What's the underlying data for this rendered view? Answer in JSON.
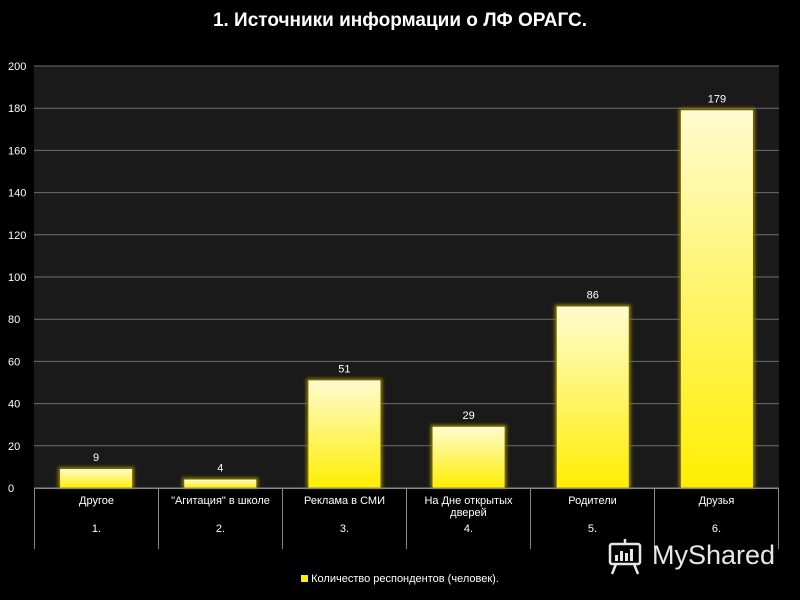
{
  "title": "1. Источники информации о ЛФ ОРАГС.",
  "chart_data": {
    "type": "bar",
    "title": "1. Источники информации о ЛФ ОРАГС.",
    "categories": [
      "Другое",
      "\"Агитация\" в школе",
      "Реклама в СМИ",
      "На Дне открытых дверей",
      "Родители",
      "Друзья"
    ],
    "category_numbers": [
      "1.",
      "2.",
      "3.",
      "4.",
      "5.",
      "6."
    ],
    "series": [
      {
        "name": "Количество респондентов (человек).",
        "values": [
          9,
          4,
          51,
          29,
          86,
          179
        ]
      }
    ],
    "ylim": [
      0,
      200
    ],
    "yticks": [
      0,
      20,
      40,
      60,
      80,
      100,
      120,
      140,
      160,
      180,
      200
    ],
    "grid": true,
    "legend_position": "bottom",
    "colors": {
      "bar_top": "#fffbd0",
      "bar_bottom": "#ffee00",
      "bar_glow": "#8a7a00",
      "grid": "#6e6e6e",
      "plot_bg": "#1a1a1a"
    }
  },
  "legend_label": "Количество респондентов (человек).",
  "watermark": {
    "text": "MyShared",
    "icon": "presentation-screen-icon"
  }
}
